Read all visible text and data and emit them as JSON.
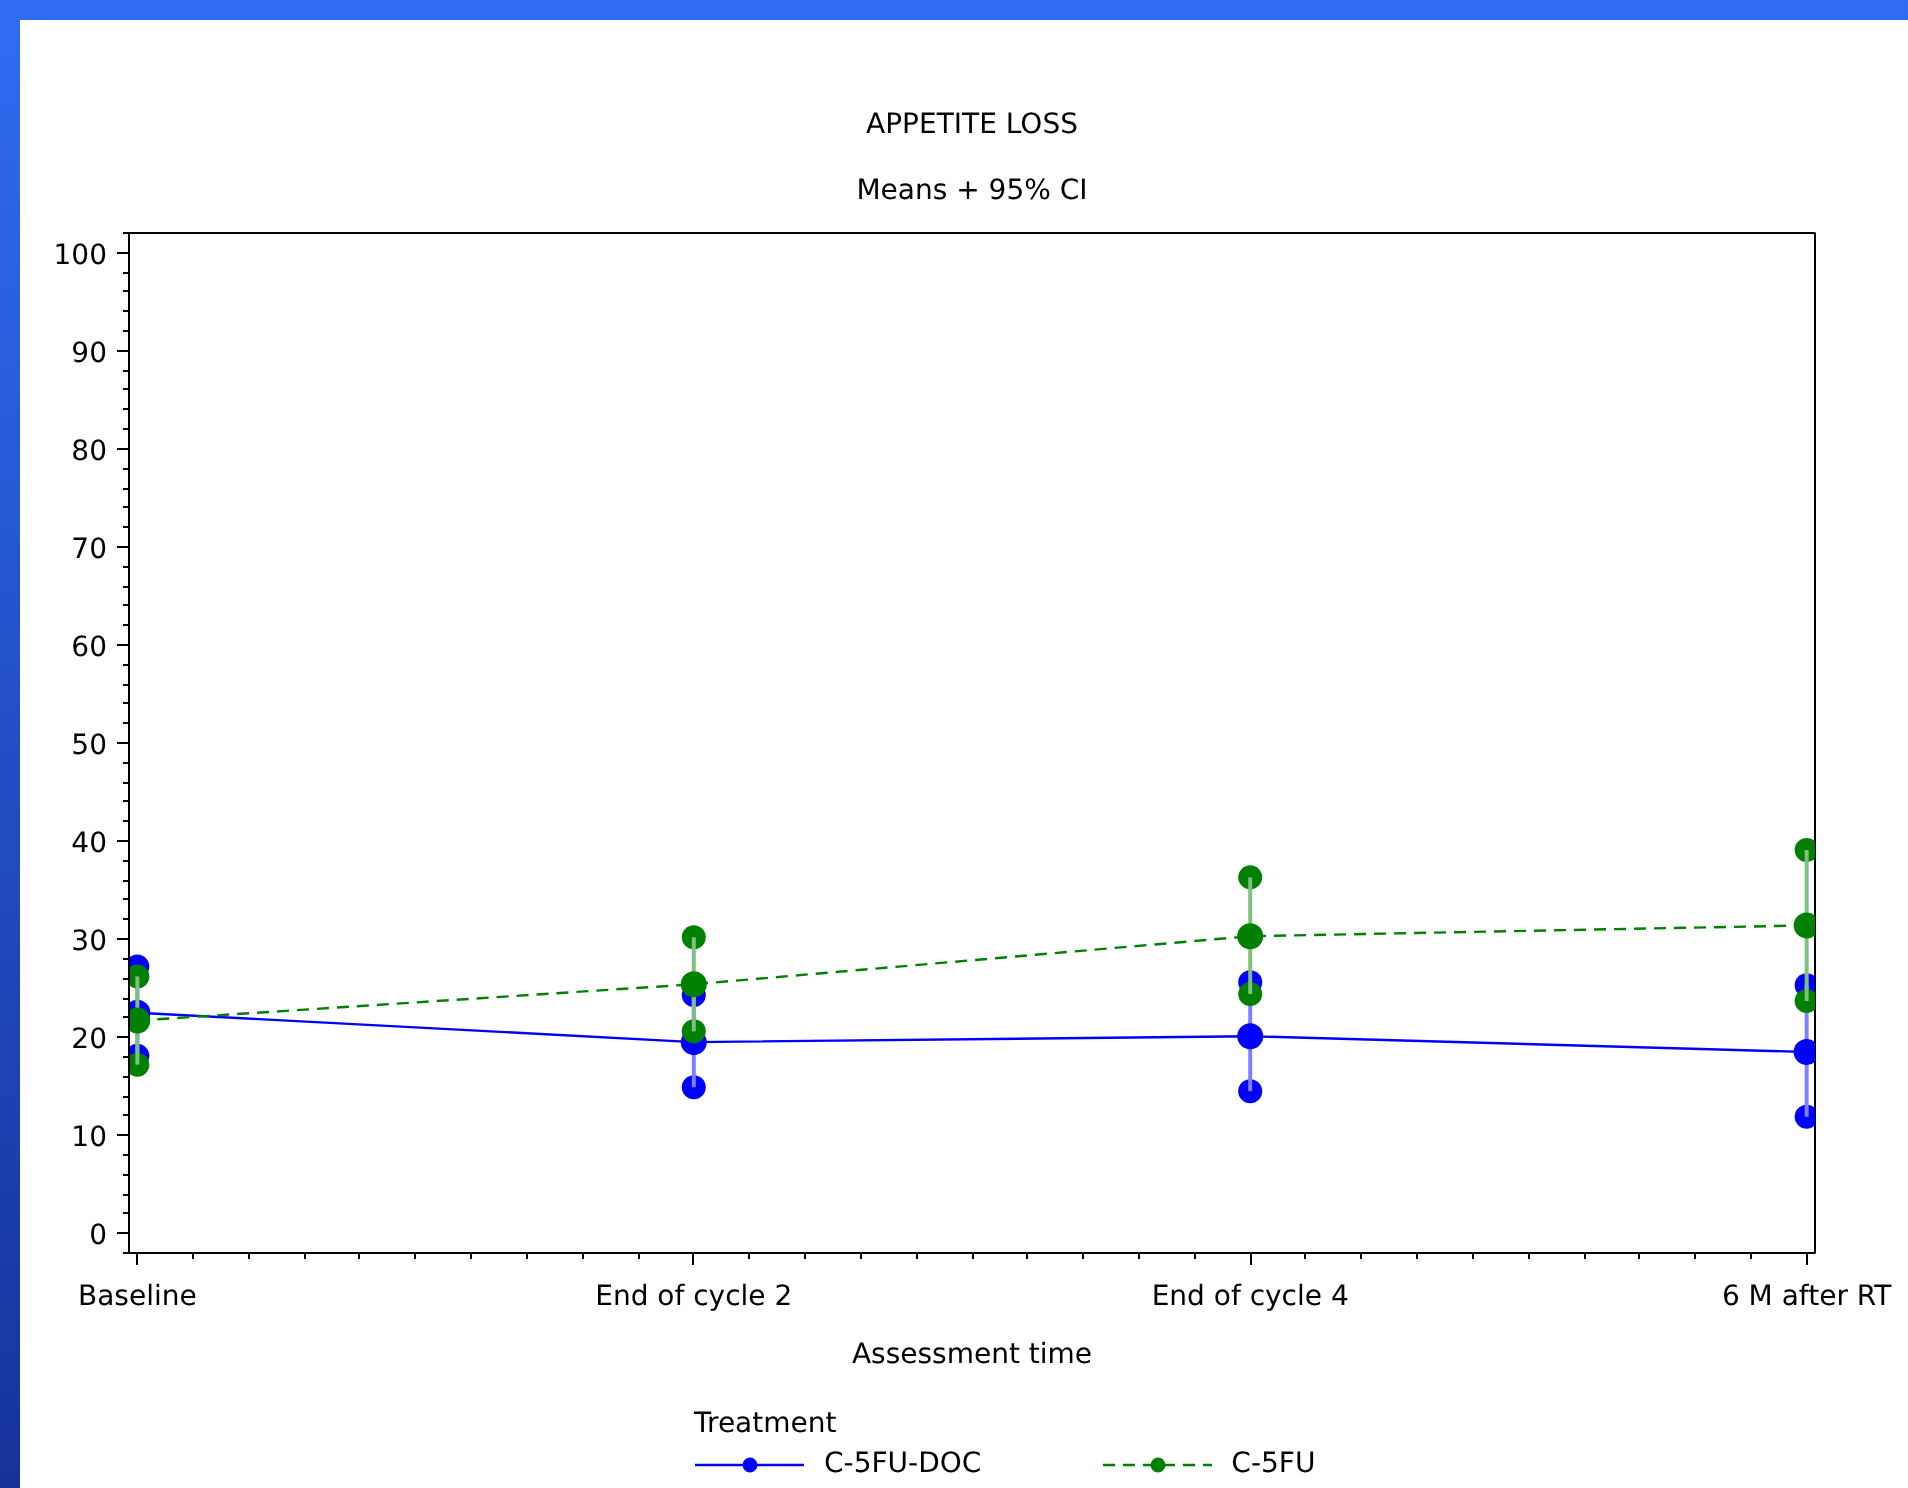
{
  "chart_data": {
    "type": "line",
    "title": "APPETITE LOSS",
    "subtitle": "Means + 95% CI",
    "xlabel": "Assessment time",
    "legend_title": "Treatment",
    "categories": [
      "Baseline",
      "End of cycle 2",
      "End of cycle 4",
      "6 M after RT"
    ],
    "ylim": [
      -2,
      102
    ],
    "yticks": [
      0,
      10,
      20,
      30,
      40,
      50,
      60,
      70,
      80,
      90,
      100
    ],
    "grid": false,
    "legend": "bottom",
    "marker": "circle",
    "series": [
      {
        "name": "C-5FU-DOC",
        "color": "#0000ff",
        "line_style": "solid",
        "values": [
          22.5,
          19.5,
          20.1,
          18.5
        ],
        "errors": [
          [
            18.1,
            27.2
          ],
          [
            14.9,
            24.3
          ],
          [
            14.5,
            25.6
          ],
          [
            11.9,
            25.3
          ]
        ]
      },
      {
        "name": "C-5FU",
        "color": "#008000",
        "line_style": "dashed",
        "values": [
          21.7,
          25.4,
          30.3,
          31.4
        ],
        "errors": [
          [
            17.2,
            26.2
          ],
          [
            20.6,
            30.2
          ],
          [
            24.4,
            36.3
          ],
          [
            23.7,
            39.1
          ]
        ]
      }
    ]
  }
}
